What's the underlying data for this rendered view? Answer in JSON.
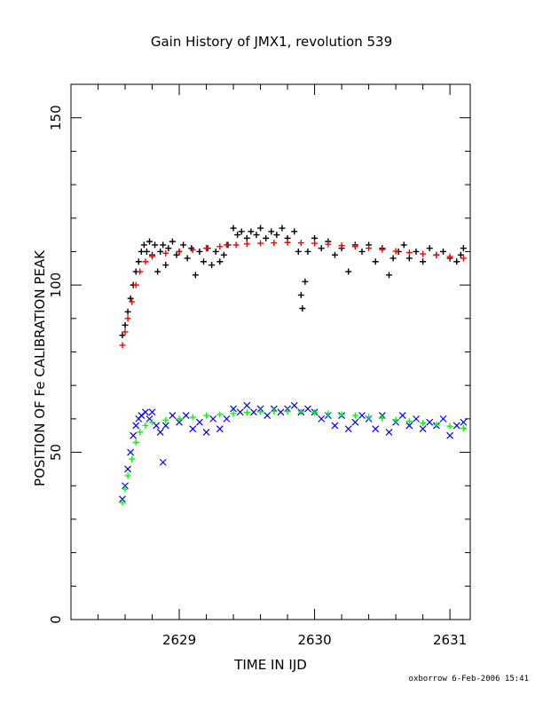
{
  "chart_data": {
    "type": "scatter",
    "title": "Gain History of JMX1, revolution 539",
    "xlabel": "TIME IN IJD",
    "ylabel": "POSITION OF Fe CALIBRATION PEAK",
    "xlim": [
      2628.2,
      2631.15
    ],
    "ylim": [
      0,
      160
    ],
    "x_ticks": [
      2629,
      2630,
      2631
    ],
    "y_ticks": [
      0,
      50,
      100,
      150
    ],
    "grid": false,
    "legend": "none",
    "series": [
      {
        "marker": "plus",
        "color": "#000000",
        "points": [
          [
            2628.58,
            85
          ],
          [
            2628.6,
            88
          ],
          [
            2628.62,
            92
          ],
          [
            2628.64,
            96
          ],
          [
            2628.66,
            100
          ],
          [
            2628.68,
            104
          ],
          [
            2628.7,
            107
          ],
          [
            2628.72,
            110
          ],
          [
            2628.74,
            112
          ],
          [
            2628.76,
            110
          ],
          [
            2628.78,
            113
          ],
          [
            2628.8,
            109
          ],
          [
            2628.82,
            112
          ],
          [
            2628.84,
            104
          ],
          [
            2628.86,
            110
          ],
          [
            2628.88,
            112
          ],
          [
            2628.9,
            106
          ],
          [
            2628.92,
            111
          ],
          [
            2628.95,
            113
          ],
          [
            2628.98,
            109
          ],
          [
            2629.0,
            110
          ],
          [
            2629.03,
            112
          ],
          [
            2629.06,
            108
          ],
          [
            2629.09,
            111
          ],
          [
            2629.12,
            103
          ],
          [
            2629.15,
            110
          ],
          [
            2629.18,
            107
          ],
          [
            2629.21,
            111
          ],
          [
            2629.24,
            106
          ],
          [
            2629.27,
            110
          ],
          [
            2629.3,
            107
          ],
          [
            2629.33,
            109
          ],
          [
            2629.36,
            112
          ],
          [
            2629.4,
            117
          ],
          [
            2629.43,
            115
          ],
          [
            2629.46,
            116
          ],
          [
            2629.5,
            114
          ],
          [
            2629.53,
            116
          ],
          [
            2629.57,
            115
          ],
          [
            2629.6,
            117
          ],
          [
            2629.64,
            114
          ],
          [
            2629.68,
            116
          ],
          [
            2629.72,
            115
          ],
          [
            2629.76,
            117
          ],
          [
            2629.8,
            114
          ],
          [
            2629.85,
            116
          ],
          [
            2629.88,
            110
          ],
          [
            2629.9,
            97
          ],
          [
            2629.91,
            93
          ],
          [
            2629.93,
            101
          ],
          [
            2629.95,
            110
          ],
          [
            2630.0,
            114
          ],
          [
            2630.05,
            111
          ],
          [
            2630.1,
            113
          ],
          [
            2630.15,
            109
          ],
          [
            2630.2,
            111
          ],
          [
            2630.25,
            104
          ],
          [
            2630.3,
            112
          ],
          [
            2630.35,
            110
          ],
          [
            2630.4,
            112
          ],
          [
            2630.45,
            107
          ],
          [
            2630.5,
            111
          ],
          [
            2630.55,
            103
          ],
          [
            2630.58,
            108
          ],
          [
            2630.62,
            110
          ],
          [
            2630.66,
            112
          ],
          [
            2630.7,
            108
          ],
          [
            2630.75,
            110
          ],
          [
            2630.8,
            107
          ],
          [
            2630.85,
            111
          ],
          [
            2630.9,
            109
          ],
          [
            2630.95,
            110
          ],
          [
            2631.0,
            108
          ],
          [
            2631.05,
            107
          ],
          [
            2631.08,
            109
          ],
          [
            2631.1,
            111
          ]
        ]
      },
      {
        "marker": "plus",
        "color": "#ff0000",
        "points": [
          [
            2628.58,
            82
          ],
          [
            2628.6,
            86
          ],
          [
            2628.62,
            90
          ],
          [
            2628.65,
            95
          ],
          [
            2628.68,
            100
          ],
          [
            2628.71,
            104
          ],
          [
            2628.75,
            107
          ],
          [
            2628.8,
            108.5
          ],
          [
            2628.9,
            109.5
          ],
          [
            2629.0,
            110
          ],
          [
            2629.1,
            110.5
          ],
          [
            2629.2,
            111
          ],
          [
            2629.3,
            111.5
          ],
          [
            2629.35,
            112
          ],
          [
            2629.42,
            112
          ],
          [
            2629.5,
            112.3
          ],
          [
            2629.6,
            112.5
          ],
          [
            2629.7,
            112.6
          ],
          [
            2629.8,
            112.7
          ],
          [
            2629.9,
            112.6
          ],
          [
            2630.0,
            112.5
          ],
          [
            2630.1,
            112.2
          ],
          [
            2630.2,
            111.8
          ],
          [
            2630.3,
            111.5
          ],
          [
            2630.4,
            111.0
          ],
          [
            2630.5,
            110.6
          ],
          [
            2630.6,
            110.1
          ],
          [
            2630.7,
            109.7
          ],
          [
            2630.8,
            109.3
          ],
          [
            2630.9,
            108.9
          ],
          [
            2631.0,
            108.5
          ],
          [
            2631.1,
            108.0
          ]
        ]
      },
      {
        "marker": "cross",
        "color": "#0000ff",
        "points": [
          [
            2628.58,
            36
          ],
          [
            2628.6,
            40
          ],
          [
            2628.62,
            45
          ],
          [
            2628.64,
            50
          ],
          [
            2628.66,
            55
          ],
          [
            2628.68,
            58
          ],
          [
            2628.7,
            60
          ],
          [
            2628.72,
            61
          ],
          [
            2628.75,
            62
          ],
          [
            2628.78,
            60
          ],
          [
            2628.8,
            62
          ],
          [
            2628.83,
            58
          ],
          [
            2628.86,
            56
          ],
          [
            2628.88,
            47
          ],
          [
            2628.9,
            58
          ],
          [
            2628.95,
            61
          ],
          [
            2629.0,
            59
          ],
          [
            2629.05,
            61
          ],
          [
            2629.1,
            57
          ],
          [
            2629.15,
            59
          ],
          [
            2629.2,
            56
          ],
          [
            2629.25,
            60
          ],
          [
            2629.3,
            57
          ],
          [
            2629.35,
            60
          ],
          [
            2629.4,
            63
          ],
          [
            2629.45,
            62
          ],
          [
            2629.5,
            64
          ],
          [
            2629.55,
            62
          ],
          [
            2629.6,
            63
          ],
          [
            2629.65,
            61
          ],
          [
            2629.7,
            63
          ],
          [
            2629.75,
            62
          ],
          [
            2629.8,
            63
          ],
          [
            2629.85,
            64
          ],
          [
            2629.9,
            62
          ],
          [
            2629.95,
            63
          ],
          [
            2630.0,
            62
          ],
          [
            2630.05,
            60
          ],
          [
            2630.1,
            61
          ],
          [
            2630.15,
            58
          ],
          [
            2630.2,
            61
          ],
          [
            2630.25,
            57
          ],
          [
            2630.3,
            59
          ],
          [
            2630.35,
            61
          ],
          [
            2630.4,
            60
          ],
          [
            2630.45,
            57
          ],
          [
            2630.5,
            61
          ],
          [
            2630.55,
            56
          ],
          [
            2630.6,
            59
          ],
          [
            2630.65,
            61
          ],
          [
            2630.7,
            58
          ],
          [
            2630.75,
            60
          ],
          [
            2630.8,
            57
          ],
          [
            2630.85,
            59
          ],
          [
            2630.9,
            58
          ],
          [
            2630.95,
            60
          ],
          [
            2631.0,
            55
          ],
          [
            2631.05,
            58
          ],
          [
            2631.1,
            59
          ]
        ]
      },
      {
        "marker": "plus",
        "color": "#00ff00",
        "points": [
          [
            2628.58,
            35
          ],
          [
            2628.6,
            39
          ],
          [
            2628.62,
            43
          ],
          [
            2628.65,
            48
          ],
          [
            2628.68,
            53
          ],
          [
            2628.71,
            56
          ],
          [
            2628.75,
            58
          ],
          [
            2628.8,
            59
          ],
          [
            2628.9,
            59.6
          ],
          [
            2629.0,
            60
          ],
          [
            2629.1,
            60.5
          ],
          [
            2629.2,
            61
          ],
          [
            2629.3,
            61.3
          ],
          [
            2629.4,
            61.6
          ],
          [
            2629.5,
            61.9
          ],
          [
            2629.6,
            62.1
          ],
          [
            2629.7,
            62.2
          ],
          [
            2629.8,
            62.2
          ],
          [
            2629.9,
            62.1
          ],
          [
            2630.0,
            61.9
          ],
          [
            2630.1,
            61.6
          ],
          [
            2630.2,
            61.3
          ],
          [
            2630.3,
            61.0
          ],
          [
            2630.4,
            60.6
          ],
          [
            2630.5,
            60.2
          ],
          [
            2630.6,
            59.7
          ],
          [
            2630.7,
            59.3
          ],
          [
            2630.8,
            58.8
          ],
          [
            2630.9,
            58.3
          ],
          [
            2631.0,
            57.8
          ],
          [
            2631.1,
            57.2
          ]
        ]
      }
    ]
  },
  "footer_text": "oxborrow   6-Feb-2006 15:41"
}
